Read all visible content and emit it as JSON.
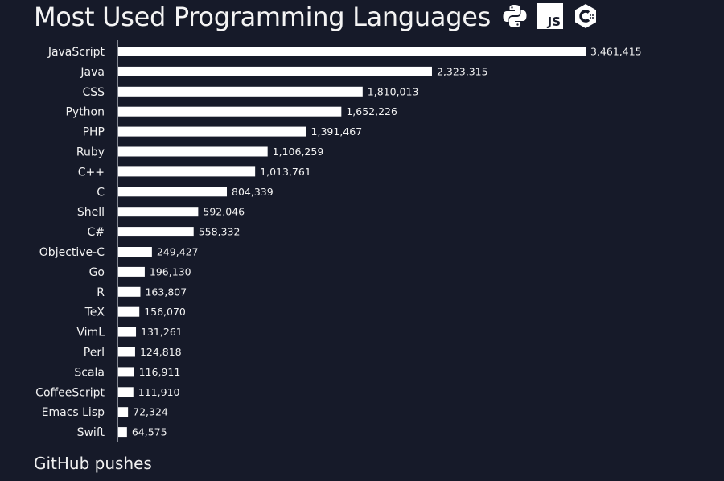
{
  "chart_data": {
    "type": "bar",
    "orientation": "horizontal",
    "title": "Most Used Programming Languages",
    "caption": "GitHub pushes",
    "categories": [
      "JavaScript",
      "Java",
      "CSS",
      "Python",
      "PHP",
      "Ruby",
      "C++",
      "C",
      "Shell",
      "C#",
      "Objective-C",
      "Go",
      "R",
      "TeX",
      "VimL",
      "Perl",
      "Scala",
      "CoffeeScript",
      "Emacs Lisp",
      "Swift"
    ],
    "values": [
      3461415,
      2323315,
      1810013,
      1652226,
      1391467,
      1106259,
      1013761,
      804339,
      592046,
      558332,
      249427,
      196130,
      163807,
      156070,
      131261,
      124818,
      116911,
      111910,
      72324,
      64575
    ],
    "value_labels": [
      "3,461,415",
      "2,323,315",
      "1,810,013",
      "1,652,226",
      "1,391,467",
      "1,106,259",
      "1,013,761",
      "804,339",
      "592,046",
      "558,332",
      "249,427",
      "196,130",
      "163,807",
      "156,070",
      "131,261",
      "124,818",
      "116,911",
      "111,910",
      "72,324",
      "64,575"
    ],
    "grid": false,
    "colors": {
      "background": "#161a29",
      "bar": "#ffffff",
      "text": "#f2f2f2"
    }
  },
  "icons": [
    "python-logo-icon",
    "javascript-logo-icon",
    "cpp-logo-icon"
  ]
}
